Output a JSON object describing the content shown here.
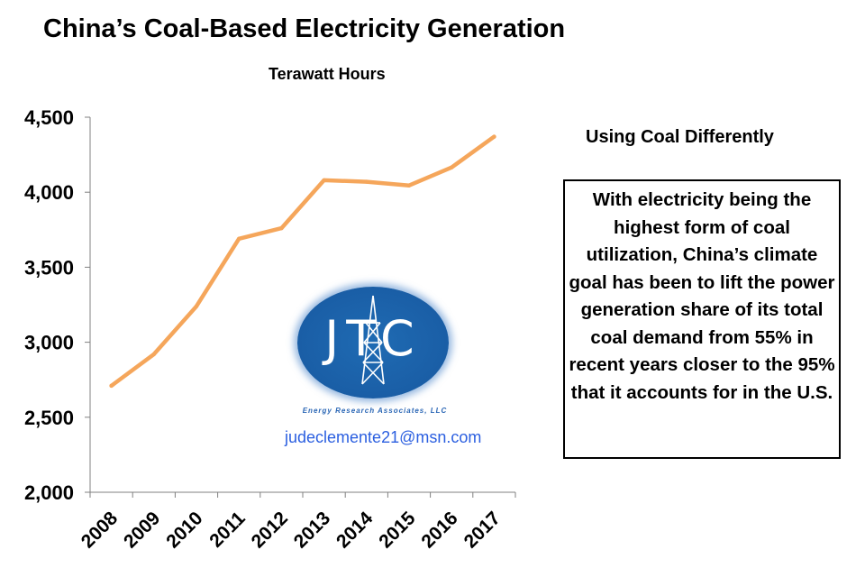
{
  "chart_data": {
    "type": "line",
    "title": "China’s Coal-Based Electricity Generation",
    "subtitle": "Terawatt Hours",
    "categories": [
      "2008",
      "2009",
      "2010",
      "2011",
      "2012",
      "2013",
      "2014",
      "2015",
      "2016",
      "2017"
    ],
    "series": [
      {
        "values": [
          2710,
          2920,
          3240,
          3690,
          3760,
          4080,
          4070,
          4045,
          4165,
          4370
        ]
      }
    ],
    "ylim": [
      2000,
      4500
    ],
    "yticks": [
      "2,000",
      "2,500",
      "3,000",
      "3,500",
      "4,000",
      "4,500"
    ],
    "ytick_values": [
      2000,
      2500,
      3000,
      3500,
      4000,
      4500
    ],
    "line_color": "#F5A65B",
    "grid": false
  },
  "sidebar": {
    "heading": "Using Coal Differently",
    "text": "With electricity being the highest form of coal utilization, China’s climate goal has been to lift the power generation share of its total coal demand from 55% in recent years closer to the 95% that it accounts for in the U.S."
  },
  "logo": {
    "letters": "JTC",
    "company": "Energy Research Associates, LLC",
    "email": "judeclemente21@msn.com",
    "color": "#1A5EA6"
  }
}
